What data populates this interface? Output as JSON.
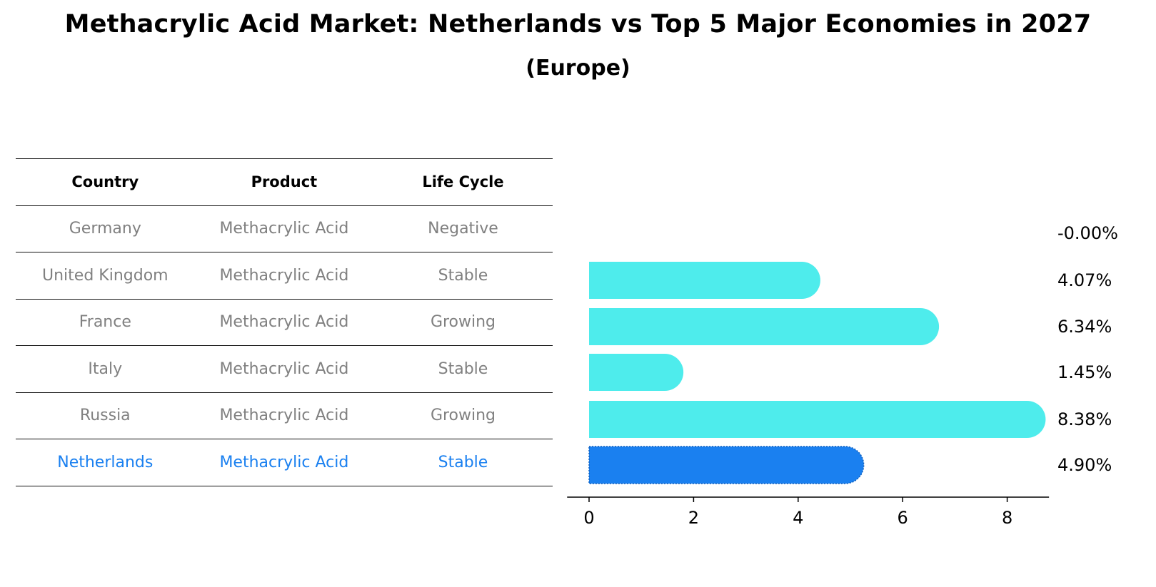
{
  "title": "Methacrylic Acid Market: Netherlands vs Top 5 Major Economies in 2027",
  "subtitle": "(Europe)",
  "table": {
    "headers": [
      "Country",
      "Product",
      "Life Cycle"
    ],
    "rows": [
      {
        "country": "Germany",
        "product": "Methacrylic Acid",
        "life_cycle": "Negative"
      },
      {
        "country": "United Kingdom",
        "product": "Methacrylic Acid",
        "life_cycle": "Stable"
      },
      {
        "country": "France",
        "product": "Methacrylic Acid",
        "life_cycle": "Growing"
      },
      {
        "country": "Italy",
        "product": "Methacrylic Acid",
        "life_cycle": "Stable"
      },
      {
        "country": "Russia",
        "product": "Methacrylic Acid",
        "life_cycle": "Growing"
      },
      {
        "country": "Netherlands",
        "product": "Methacrylic Acid",
        "life_cycle": "Stable"
      }
    ]
  },
  "chart_data": {
    "type": "bar",
    "orientation": "horizontal",
    "categories": [
      "Germany",
      "United Kingdom",
      "France",
      "Italy",
      "Russia",
      "Netherlands"
    ],
    "values": [
      0.0,
      4.07,
      6.34,
      1.45,
      8.38,
      4.9
    ],
    "value_labels": [
      "-0.00%",
      "4.07%",
      "6.34%",
      "1.45%",
      "8.38%",
      "4.90%"
    ],
    "xticks": [
      0,
      2,
      4,
      6,
      8
    ],
    "xlim": [
      -0.42,
      8.8
    ],
    "grid": false,
    "colors": {
      "default": "#4eecec",
      "highlight": "#1a80f0"
    },
    "highlight_category": "Netherlands"
  }
}
